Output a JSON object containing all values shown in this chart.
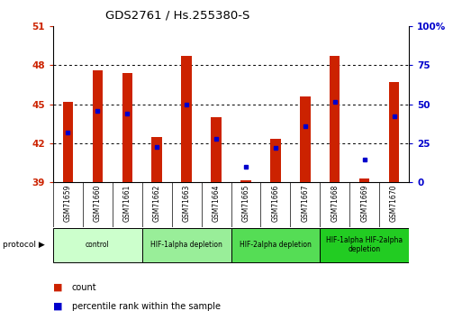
{
  "title": "GDS2761 / Hs.255380-S",
  "samples": [
    "GSM71659",
    "GSM71660",
    "GSM71661",
    "GSM71662",
    "GSM71663",
    "GSM71664",
    "GSM71665",
    "GSM71666",
    "GSM71667",
    "GSM71668",
    "GSM71669",
    "GSM71670"
  ],
  "count_values": [
    45.2,
    47.6,
    47.4,
    42.5,
    48.7,
    44.0,
    39.1,
    42.3,
    45.6,
    48.7,
    39.3,
    46.7
  ],
  "percentile_values": [
    42.8,
    44.5,
    44.3,
    41.7,
    45.0,
    42.3,
    40.2,
    41.6,
    43.3,
    45.2,
    40.7,
    44.1
  ],
  "ylim_left": [
    39,
    51
  ],
  "ylim_right": [
    0,
    100
  ],
  "yticks_left": [
    39,
    42,
    45,
    48,
    51
  ],
  "yticks_right": [
    0,
    25,
    50,
    75,
    100
  ],
  "bar_color": "#cc2200",
  "dot_color": "#0000cc",
  "left_tick_color": "#cc2200",
  "right_tick_color": "#0000cc",
  "grid_color": "black",
  "base_value": 39,
  "bar_width": 0.35,
  "group_info": [
    {
      "label": "control",
      "cols": [
        0,
        1,
        2
      ],
      "color": "#ccffcc"
    },
    {
      "label": "HIF-1alpha depletion",
      "cols": [
        3,
        4,
        5
      ],
      "color": "#99ee99"
    },
    {
      "label": "HIF-2alpha depletion",
      "cols": [
        6,
        7,
        8
      ],
      "color": "#55dd55"
    },
    {
      "label": "HIF-1alpha HIF-2alpha\ndepletion",
      "cols": [
        9,
        10,
        11
      ],
      "color": "#22cc22"
    }
  ],
  "xtick_bg_color": "#cccccc",
  "right_tick_labels": [
    "0",
    "25",
    "50",
    "75",
    "100%"
  ]
}
